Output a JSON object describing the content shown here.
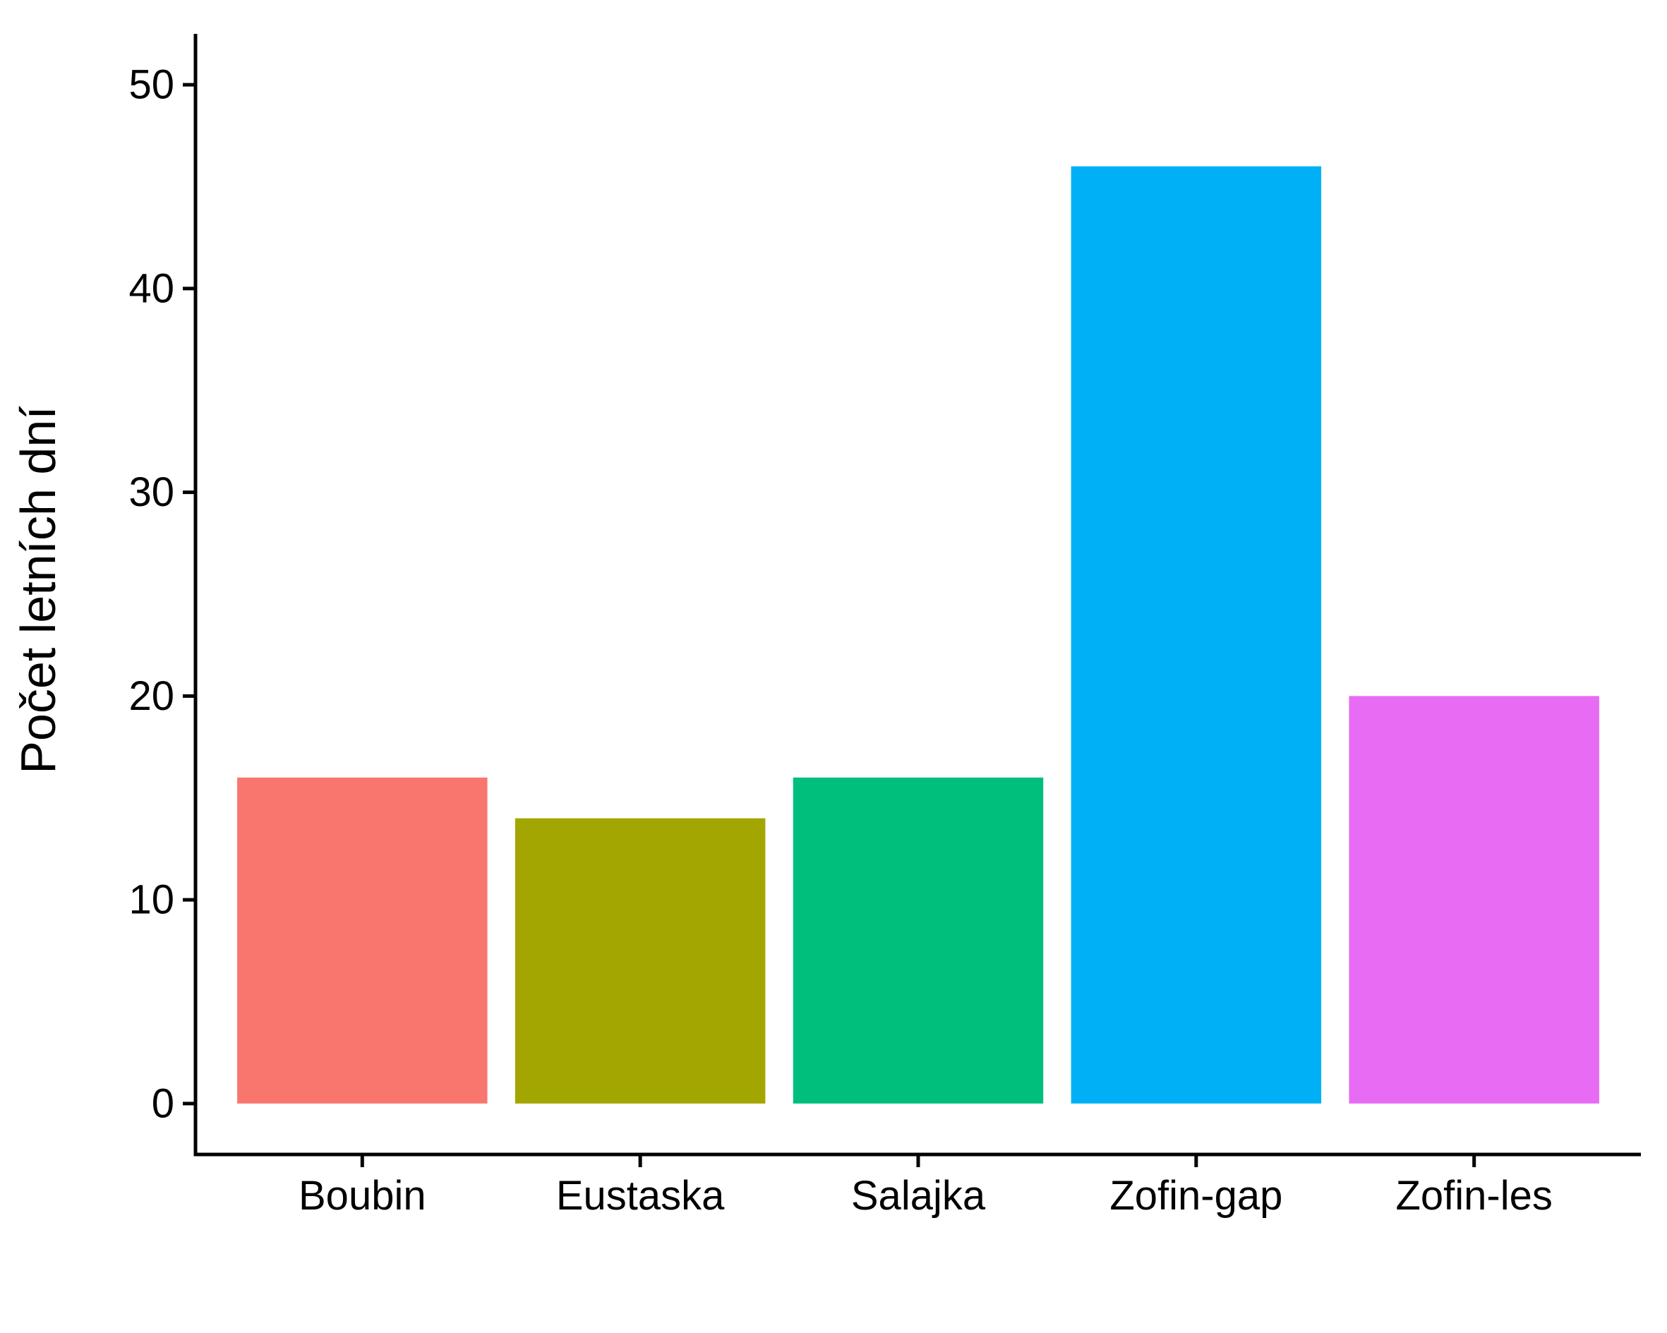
{
  "chart_data": {
    "type": "bar",
    "title": "",
    "xlabel": "",
    "ylabel": "Počet letních dní",
    "categories": [
      "Boubin",
      "Eustaska",
      "Salajka",
      "Zofin-gap",
      "Zofin-les"
    ],
    "values": [
      16,
      14,
      16,
      46,
      20
    ],
    "colors": [
      "#F8766D",
      "#A3A500",
      "#00BF7D",
      "#00B0F6",
      "#E76BF3"
    ],
    "ylim": [
      -2.5,
      52.5
    ],
    "yticks": [
      0,
      10,
      20,
      30,
      40,
      50
    ],
    "grid": false,
    "legend": "none"
  }
}
